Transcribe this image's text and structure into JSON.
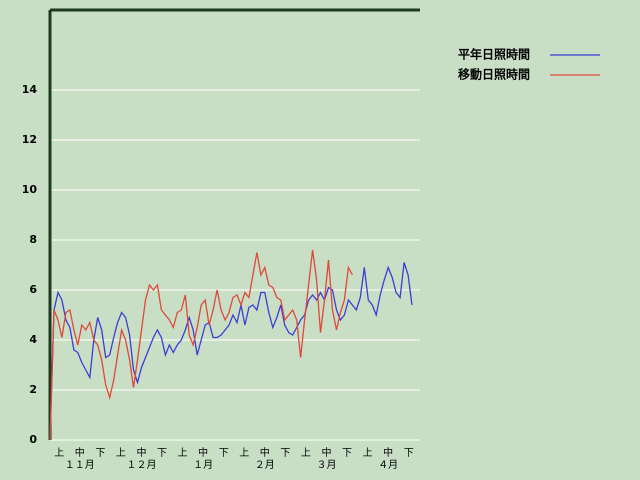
{
  "chart_data": {
    "type": "line",
    "categories": [
      "上",
      "中",
      "下",
      "上",
      "中",
      "下",
      "上",
      "中",
      "下",
      "上",
      "中",
      "下",
      "上",
      "中",
      "下",
      "上",
      "中",
      "下"
    ],
    "month_labels": [
      "１１月",
      "１２月",
      "１月",
      "２月",
      "３月",
      "４月"
    ],
    "x": [
      0,
      2,
      4,
      6,
      8,
      10,
      12,
      14,
      16,
      18,
      20,
      22,
      24,
      26,
      28,
      30,
      32,
      34,
      36,
      38,
      40,
      42,
      44,
      46,
      48,
      50,
      52,
      54,
      56,
      58,
      60,
      62,
      64,
      66,
      68,
      70,
      72,
      74,
      76,
      78,
      80,
      82,
      84,
      86,
      88,
      90,
      92,
      94,
      96,
      98,
      100,
      102,
      104,
      106,
      108,
      110,
      112,
      114,
      116,
      118,
      120,
      122,
      124,
      126,
      128,
      130,
      132,
      134,
      136,
      138,
      140,
      142,
      144,
      146,
      148,
      150,
      152,
      154,
      156,
      158,
      160,
      162,
      164,
      166,
      168,
      170,
      172,
      174,
      176,
      178,
      180,
      182
    ],
    "xlim": [
      0,
      186
    ],
    "ylim": [
      0,
      17.2
    ],
    "yticks": [
      0,
      2,
      4,
      6,
      8,
      10,
      12,
      14
    ],
    "grid": true,
    "series": [
      {
        "name": "平年日照時間",
        "color": "#3c3cd8",
        "values": [
          0,
          5.2,
          5.9,
          5.6,
          4.8,
          4.5,
          3.6,
          3.5,
          3.1,
          2.8,
          2.5,
          4.0,
          4.9,
          4.4,
          3.3,
          3.4,
          4.1,
          4.7,
          5.1,
          4.9,
          4.2,
          2.8,
          2.3,
          2.9,
          3.3,
          3.7,
          4.1,
          4.4,
          4.1,
          3.4,
          3.8,
          3.5,
          3.8,
          4.0,
          4.4,
          4.9,
          4.4,
          3.4,
          4.0,
          4.6,
          4.7,
          4.1,
          4.1,
          4.2,
          4.4,
          4.6,
          5.0,
          4.7,
          5.4,
          4.6,
          5.3,
          5.4,
          5.2,
          5.9,
          5.9,
          5.1,
          4.5,
          4.9,
          5.4,
          4.6,
          4.3,
          4.2,
          4.5,
          4.8,
          5.0,
          5.6,
          5.8,
          5.6,
          5.9,
          5.6,
          6.1,
          6.0,
          5.2,
          4.8,
          5.0,
          5.6,
          5.4,
          5.2,
          5.7,
          6.9,
          5.6,
          5.4,
          5.0,
          5.8,
          6.4,
          6.9,
          6.5,
          5.9,
          5.7,
          7.1,
          6.6,
          5.4
        ]
      },
      {
        "name": "移動日照時間",
        "color": "#e04838",
        "values": [
          0,
          5.2,
          4.8,
          4.1,
          5.1,
          5.2,
          4.4,
          3.8,
          4.6,
          4.4,
          4.7,
          4.0,
          3.8,
          3.2,
          2.2,
          1.7,
          2.4,
          3.4,
          4.4,
          4.0,
          3.2,
          2.1,
          3.2,
          4.4,
          5.6,
          6.2,
          6.0,
          6.2,
          5.2,
          5.0,
          4.8,
          4.5,
          5.1,
          5.2,
          5.8,
          4.2,
          3.8,
          4.5,
          5.4,
          5.6,
          4.6,
          5.2,
          6.0,
          5.2,
          4.8,
          5.1,
          5.7,
          5.8,
          5.4,
          5.9,
          5.7,
          6.6,
          7.5,
          6.6,
          6.9,
          6.2,
          6.1,
          5.7,
          5.6,
          4.8,
          5.0,
          5.2,
          4.8,
          3.3,
          4.8,
          6.2,
          7.6,
          6.4,
          4.3,
          5.6,
          7.2,
          5.2,
          4.4,
          5.1,
          5.6,
          6.9,
          6.6,
          null,
          null,
          null,
          null,
          null,
          null,
          null,
          null,
          null,
          null,
          null,
          null,
          null,
          null,
          null
        ]
      }
    ]
  }
}
